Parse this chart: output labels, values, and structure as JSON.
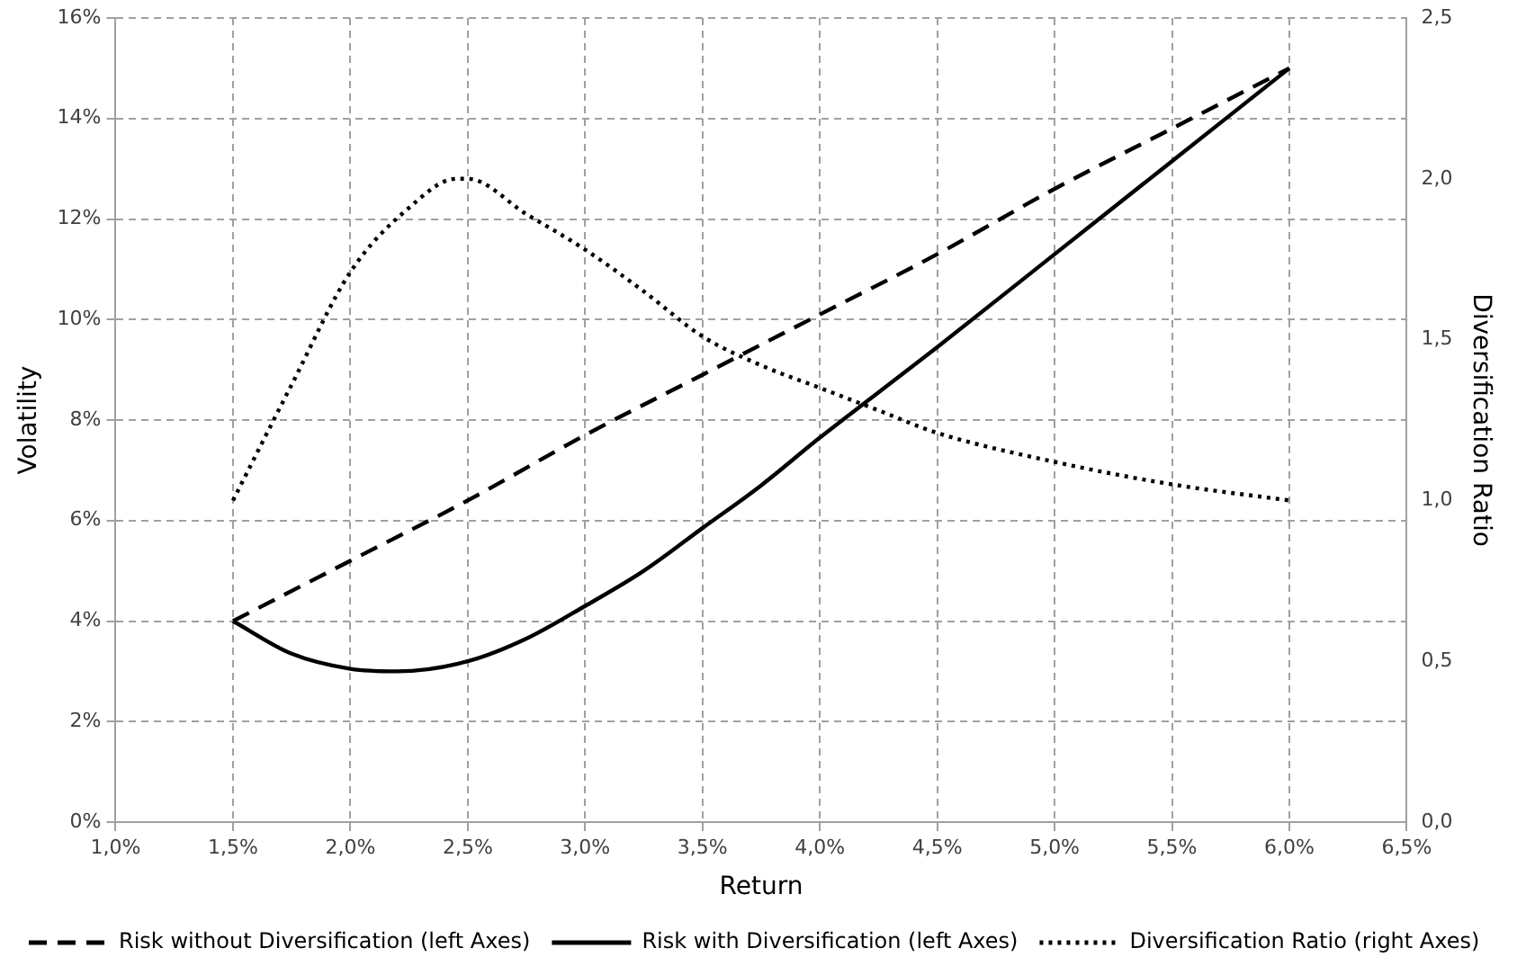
{
  "chart_data": {
    "type": "line",
    "xlabel": "Return",
    "ylabel": "Volatility",
    "y2label": "Diversification Ratio",
    "xlim": [
      1.0,
      6.5
    ],
    "xticks": [
      {
        "value": 1.0,
        "label": "1,0%"
      },
      {
        "value": 1.5,
        "label": "1,5%"
      },
      {
        "value": 2.0,
        "label": "2,0%"
      },
      {
        "value": 2.5,
        "label": "2,5%"
      },
      {
        "value": 3.0,
        "label": "3,0%"
      },
      {
        "value": 3.5,
        "label": "3,5%"
      },
      {
        "value": 4.0,
        "label": "4,0%"
      },
      {
        "value": 4.5,
        "label": "4,5%"
      },
      {
        "value": 5.0,
        "label": "5,0%"
      },
      {
        "value": 5.5,
        "label": "5,5%"
      },
      {
        "value": 6.0,
        "label": "6,0%"
      },
      {
        "value": 6.5,
        "label": "6,5%"
      }
    ],
    "ylim": [
      0,
      16
    ],
    "yticks": [
      {
        "value": 0,
        "label": "0%"
      },
      {
        "value": 2,
        "label": "2%"
      },
      {
        "value": 4,
        "label": "4%"
      },
      {
        "value": 6,
        "label": "6%"
      },
      {
        "value": 8,
        "label": "8%"
      },
      {
        "value": 10,
        "label": "10%"
      },
      {
        "value": 12,
        "label": "12%"
      },
      {
        "value": 14,
        "label": "14%"
      },
      {
        "value": 16,
        "label": "16%"
      }
    ],
    "y2lim": [
      0,
      2.5
    ],
    "y2ticks": [
      {
        "value": 0,
        "label": "0,0"
      },
      {
        "value": 0.5,
        "label": "0,5"
      },
      {
        "value": 1.0,
        "label": "1,0"
      },
      {
        "value": 1.5,
        "label": "1,5"
      },
      {
        "value": 2.0,
        "label": "2,0"
      },
      {
        "value": 2.5,
        "label": "2,5"
      }
    ],
    "grid": true,
    "legend": "bottom",
    "marker": "none",
    "series": [
      {
        "name": "Risk without Diversification (left Axes)",
        "color": "#000000",
        "line_style": "dashed",
        "x": [
          1.5,
          2.0,
          2.5,
          3.0,
          3.5,
          4.0,
          4.5,
          5.0,
          5.5,
          6.0
        ],
        "values": [
          4.0,
          5.2,
          6.4,
          7.7,
          8.9,
          10.1,
          11.3,
          12.6,
          13.8,
          15.0
        ]
      },
      {
        "name": "Risk with Diversification (left Axes)",
        "color": "#000000",
        "line_style": "solid",
        "x": [
          1.5,
          1.75,
          2.0,
          2.2,
          2.5,
          2.75,
          3.0,
          3.25,
          3.5,
          3.75,
          4.0,
          4.25,
          4.5,
          5.0,
          5.5,
          6.0
        ],
        "values": [
          4.0,
          3.35,
          3.05,
          3.0,
          3.2,
          3.65,
          4.3,
          5.0,
          5.85,
          6.7,
          7.65,
          8.55,
          9.45,
          11.3,
          13.15,
          15.0
        ]
      },
      {
        "name": "Diversification Ratio (right Axes)",
        "color": "#000000",
        "line_style": "dotted",
        "axis": "y2",
        "x": [
          1.5,
          1.75,
          2.0,
          2.25,
          2.45,
          2.5,
          2.75,
          3.0,
          3.25,
          3.5,
          3.75,
          4.0,
          4.25,
          4.5,
          5.0,
          5.5,
          6.0
        ],
        "values": [
          1.0,
          1.36,
          1.71,
          1.91,
          2.0,
          2.0,
          1.89,
          1.78,
          1.65,
          1.51,
          1.42,
          1.35,
          1.28,
          1.21,
          1.12,
          1.05,
          1.0
        ]
      }
    ]
  }
}
